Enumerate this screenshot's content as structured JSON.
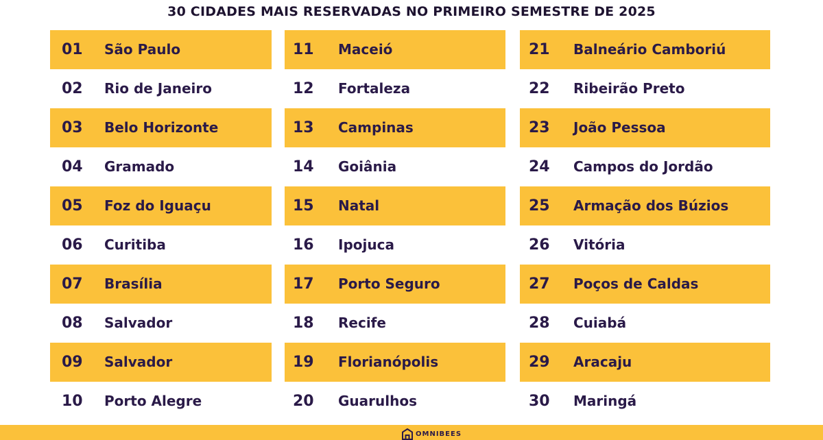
{
  "title": "30 CIDADES MAIS RESERVADAS NO PRIMEIRO SEMESTRE DE 2025",
  "columns": [
    {
      "rows": [
        {
          "rank": "01",
          "city": "São Paulo"
        },
        {
          "rank": "02",
          "city": "Rio de Janeiro"
        },
        {
          "rank": "03",
          "city": "Belo Horizonte"
        },
        {
          "rank": "04",
          "city": "Gramado"
        },
        {
          "rank": "05",
          "city": "Foz do Iguaçu"
        },
        {
          "rank": "06",
          "city": "Curitiba"
        },
        {
          "rank": "07",
          "city": "Brasília"
        },
        {
          "rank": "08",
          "city": "Salvador"
        },
        {
          "rank": "09",
          "city": "Salvador"
        },
        {
          "rank": "10",
          "city": "Porto Alegre"
        }
      ]
    },
    {
      "rows": [
        {
          "rank": "11",
          "city": "Maceió"
        },
        {
          "rank": "12",
          "city": "Fortaleza"
        },
        {
          "rank": "13",
          "city": "Campinas"
        },
        {
          "rank": "14",
          "city": "Goiânia"
        },
        {
          "rank": "15",
          "city": "Natal"
        },
        {
          "rank": "16",
          "city": "Ipojuca"
        },
        {
          "rank": "17",
          "city": "Porto Seguro"
        },
        {
          "rank": "18",
          "city": "Recife"
        },
        {
          "rank": "19",
          "city": "Florianópolis"
        },
        {
          "rank": "20",
          "city": "Guarulhos"
        }
      ]
    },
    {
      "rows": [
        {
          "rank": "21",
          "city": "Balneário Camboriú"
        },
        {
          "rank": "22",
          "city": "Ribeirão Preto"
        },
        {
          "rank": "23",
          "city": "João Pessoa"
        },
        {
          "rank": "24",
          "city": "Campos do Jordão"
        },
        {
          "rank": "25",
          "city": "Armação dos Búzios"
        },
        {
          "rank": "26",
          "city": "Vitória"
        },
        {
          "rank": "27",
          "city": "Poços de Caldas"
        },
        {
          "rank": "28",
          "city": "Cuiabá"
        },
        {
          "rank": "29",
          "city": "Aracaju"
        },
        {
          "rank": "30",
          "city": "Maringá"
        }
      ]
    }
  ],
  "footer": {
    "logo_text": "OMNIBEES",
    "logo_icon": "omnibees-house-icon"
  },
  "colors": {
    "highlight": "#fbc13a",
    "text": "#2a1a48",
    "background": "#ffffff"
  }
}
